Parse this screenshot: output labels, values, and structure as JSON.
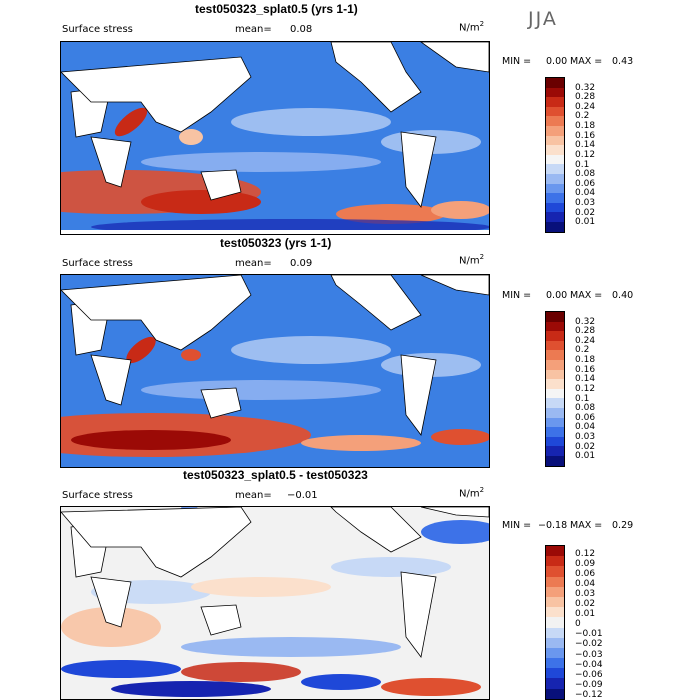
{
  "season": "JJA",
  "colors": {
    "abs_scale": [
      "#08107a",
      "#1624b0",
      "#1f48d8",
      "#3d72e8",
      "#6a97ee",
      "#9ab9f2",
      "#c7d9f6",
      "#f5f5f5",
      "#fbe0cc",
      "#f8c3a3",
      "#f4a07a",
      "#ec7a52",
      "#df5030",
      "#c82a16",
      "#9b0a06",
      "#6a0000"
    ],
    "diff_scale": [
      "#08107a",
      "#1624b0",
      "#1f48d8",
      "#3d72e8",
      "#6a97ee",
      "#9ab9f2",
      "#c7d9f6",
      "#f2f2f2",
      "#fbe0cc",
      "#f8c3a3",
      "#f4a07a",
      "#ec7a52",
      "#df5030",
      "#c82a16",
      "#9b0a06"
    ]
  },
  "panels": [
    {
      "title": "test050323_splat0.5 (yrs 1-1)",
      "field_label": "Surface stress",
      "mean_label": "mean=",
      "mean_value": "0.08",
      "units": "N/m",
      "units_exp": "2",
      "min_label": "MIN =",
      "min_value": "0.00",
      "max_label": "MAX =",
      "max_value": "0.43",
      "colorbar_labels": [
        "0.32",
        "0.28",
        "0.24",
        "0.2",
        "0.18",
        "0.16",
        "0.14",
        "0.12",
        "0.1",
        "0.08",
        "0.06",
        "0.04",
        "0.03",
        "0.02",
        "0.01"
      ]
    },
    {
      "title": "test050323 (yrs 1-1)",
      "field_label": "Surface stress",
      "mean_label": "mean=",
      "mean_value": "0.09",
      "units": "N/m",
      "units_exp": "2",
      "min_label": "MIN =",
      "min_value": "0.00",
      "max_label": "MAX =",
      "max_value": "0.40",
      "colorbar_labels": [
        "0.32",
        "0.28",
        "0.24",
        "0.2",
        "0.18",
        "0.16",
        "0.14",
        "0.12",
        "0.1",
        "0.08",
        "0.06",
        "0.04",
        "0.03",
        "0.02",
        "0.01"
      ]
    },
    {
      "title": "test050323_splat0.5 - test050323",
      "field_label": "Surface stress",
      "mean_label": "mean=",
      "mean_value": "−0.01",
      "units": "N/m",
      "units_exp": "2",
      "min_label": "MIN =",
      "min_value": "−0.18",
      "max_label": "MAX =",
      "max_value": "0.29",
      "colorbar_labels": [
        "0.12",
        "0.09",
        "0.06",
        "0.04",
        "0.03",
        "0.02",
        "0.01",
        "0",
        "−0.01",
        "−0.02",
        "−0.03",
        "−0.04",
        "−0.06",
        "−0.09",
        "−0.12"
      ]
    }
  ],
  "chart_data": [
    {
      "type": "heatmap",
      "title": "test050323_splat0.5 (yrs 1-1)",
      "variable": "Surface stress",
      "units": "N/m2",
      "season": "JJA",
      "mean": 0.08,
      "min": 0.0,
      "max": 0.43,
      "levels": [
        0.01,
        0.02,
        0.03,
        0.04,
        0.06,
        0.08,
        0.1,
        0.12,
        0.14,
        0.16,
        0.18,
        0.2,
        0.24,
        0.28,
        0.32
      ]
    },
    {
      "type": "heatmap",
      "title": "test050323 (yrs 1-1)",
      "variable": "Surface stress",
      "units": "N/m2",
      "season": "JJA",
      "mean": 0.09,
      "min": 0.0,
      "max": 0.4,
      "levels": [
        0.01,
        0.02,
        0.03,
        0.04,
        0.06,
        0.08,
        0.1,
        0.12,
        0.14,
        0.16,
        0.18,
        0.2,
        0.24,
        0.28,
        0.32
      ]
    },
    {
      "type": "heatmap",
      "title": "test050323_splat0.5 - test050323",
      "variable": "Surface stress",
      "units": "N/m2",
      "season": "JJA",
      "mean": -0.01,
      "min": -0.18,
      "max": 0.29,
      "levels": [
        -0.12,
        -0.09,
        -0.06,
        -0.04,
        -0.03,
        -0.02,
        -0.01,
        0,
        0.01,
        0.02,
        0.03,
        0.04,
        0.06,
        0.09,
        0.12
      ]
    }
  ]
}
